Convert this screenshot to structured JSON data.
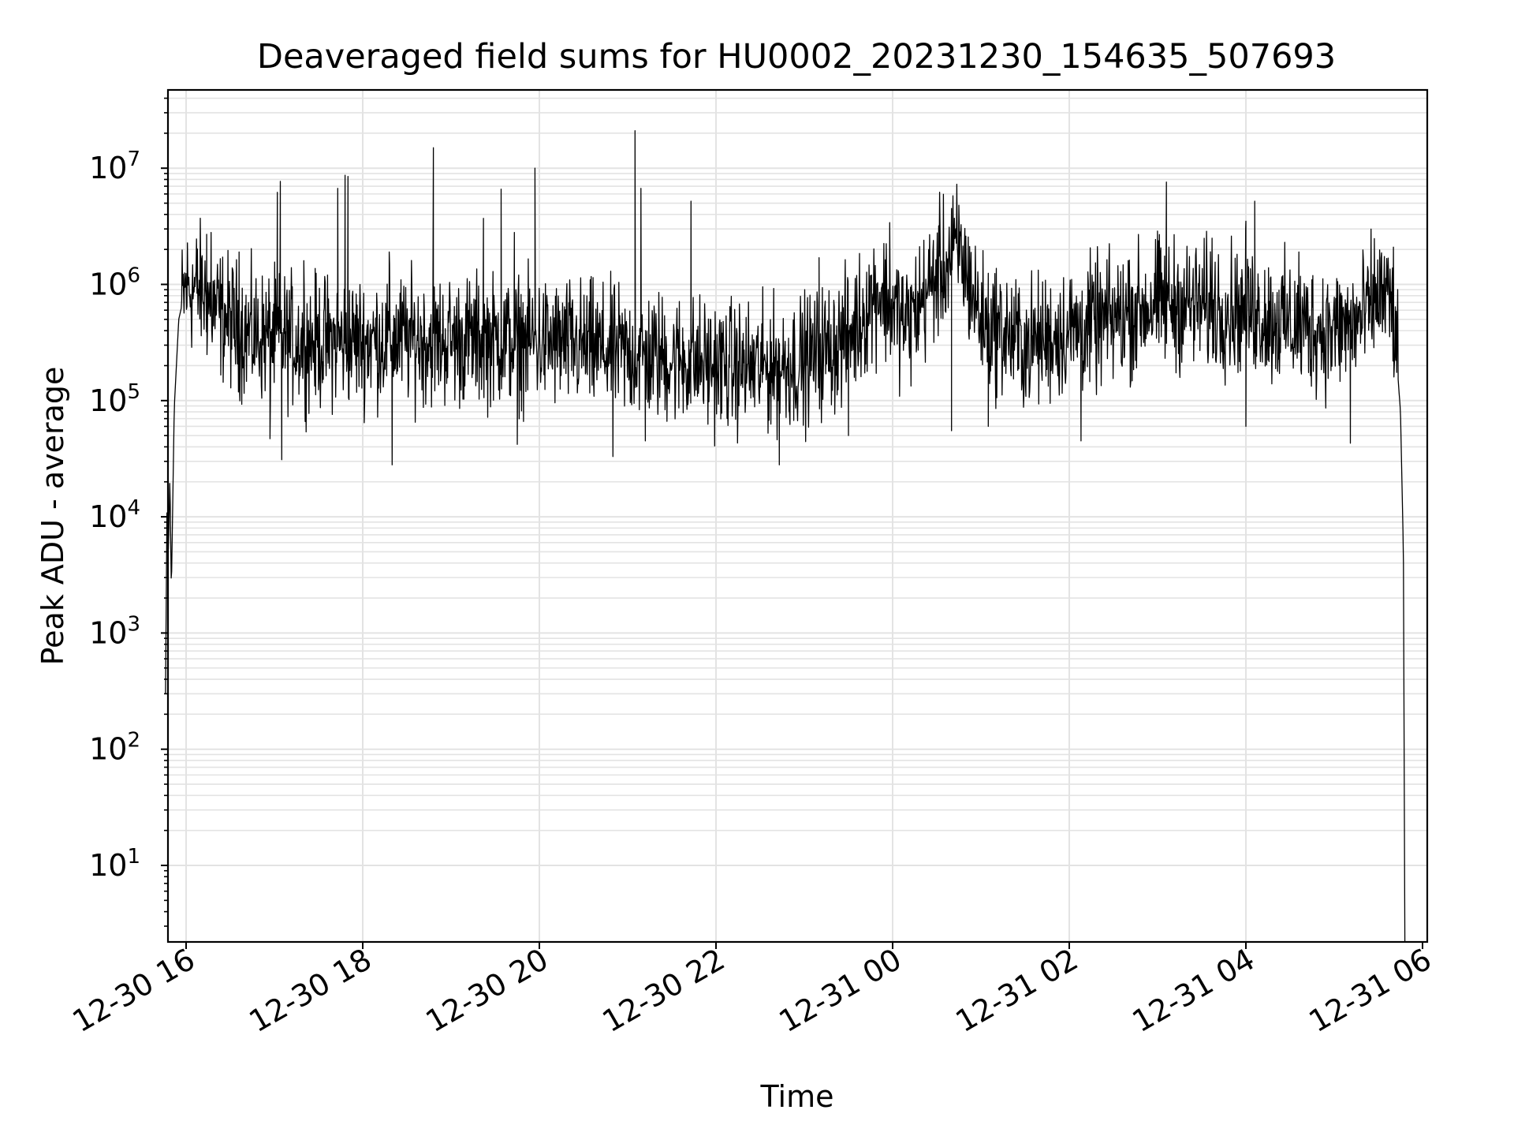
{
  "chart_data": {
    "type": "line",
    "title": "Deaveraged field sums for HU0002_20231230_154635_507693",
    "xlabel": "Time",
    "ylabel": "Peak ADU - average",
    "yscale": "log",
    "grid": true,
    "x_tick_labels": [
      "12-30 16",
      "12-30 18",
      "12-30 20",
      "12-30 22",
      "12-31 00",
      "12-31 02",
      "12-31 04",
      "12-31 06"
    ],
    "y_tick_labels": [
      {
        "base": "10",
        "exp": "1"
      },
      {
        "base": "10",
        "exp": "2"
      },
      {
        "base": "10",
        "exp": "3"
      },
      {
        "base": "10",
        "exp": "4"
      },
      {
        "base": "10",
        "exp": "5"
      },
      {
        "base": "10",
        "exp": "6"
      },
      {
        "base": "10",
        "exp": "7"
      }
    ],
    "x_range": [
      "2023-12-30 15:46",
      "2023-12-31 06:00"
    ],
    "y_range": [
      2,
      45000000
    ],
    "series": [
      {
        "color": "#000000",
        "points": [
          [
            "2023-12-30 15:46",
            300
          ],
          [
            "2023-12-30 15:47",
            12000
          ],
          [
            "2023-12-30 15:48",
            5000
          ],
          [
            "2023-12-30 15:49",
            22000
          ],
          [
            "2023-12-30 15:50",
            2300
          ],
          [
            "2023-12-30 15:52",
            90000
          ],
          [
            "2023-12-30 15:55",
            500000
          ],
          [
            "2023-12-30 16:00",
            950000
          ],
          [
            "2023-12-30 16:10",
            900000
          ],
          [
            "2023-12-30 16:20",
            600000
          ],
          [
            "2023-12-30 16:40",
            380000
          ],
          [
            "2023-12-30 17:00",
            340000
          ],
          [
            "2023-12-30 17:30",
            320000
          ],
          [
            "2023-12-30 18:00",
            330000
          ],
          [
            "2023-12-30 18:30",
            340000
          ],
          [
            "2023-12-30 19:00",
            330000
          ],
          [
            "2023-12-30 19:30",
            330000
          ],
          [
            "2023-12-30 20:00",
            320000
          ],
          [
            "2023-12-30 20:30",
            290000
          ],
          [
            "2023-12-30 21:00",
            250000
          ],
          [
            "2023-12-30 21:30",
            230000
          ],
          [
            "2023-12-30 22:00",
            200000
          ],
          [
            "2023-12-30 22:30",
            190000
          ],
          [
            "2023-12-30 23:00",
            220000
          ],
          [
            "2023-12-30 23:30",
            350000
          ],
          [
            "2023-12-30 23:50",
            900000
          ],
          [
            "2023-12-31 00:10",
            450000
          ],
          [
            "2023-12-31 00:30",
            1200000
          ],
          [
            "2023-12-31 00:45",
            2000000
          ],
          [
            "2023-12-31 01:00",
            500000
          ],
          [
            "2023-12-31 01:30",
            300000
          ],
          [
            "2023-12-31 02:00",
            400000
          ],
          [
            "2023-12-31 02:30",
            500000
          ],
          [
            "2023-12-31 03:00",
            700000
          ],
          [
            "2023-12-31 03:30",
            650000
          ],
          [
            "2023-12-31 04:00",
            600000
          ],
          [
            "2023-12-31 04:30",
            450000
          ],
          [
            "2023-12-31 05:00",
            400000
          ],
          [
            "2023-12-31 05:20",
            500000
          ],
          [
            "2023-12-31 05:30",
            850000
          ],
          [
            "2023-12-31 05:40",
            650000
          ],
          [
            "2023-12-31 05:45",
            80000
          ],
          [
            "2023-12-31 05:47",
            5000
          ],
          [
            "2023-12-31 05:48",
            2
          ]
        ],
        "peaks": [
          [
            "2023-12-30 16:14",
            2700000
          ],
          [
            "2023-12-30 16:17",
            2800000
          ],
          [
            "2023-12-30 16:36",
            1900000
          ],
          [
            "2023-12-30 17:02",
            6200000
          ],
          [
            "2023-12-30 17:04",
            7700000
          ],
          [
            "2023-12-30 17:20",
            1600000
          ],
          [
            "2023-12-30 17:43",
            6700000
          ],
          [
            "2023-12-30 17:48",
            8700000
          ],
          [
            "2023-12-30 17:50",
            8500000
          ],
          [
            "2023-12-30 18:18",
            1900000
          ],
          [
            "2023-12-30 18:48",
            15000000
          ],
          [
            "2023-12-30 19:22",
            3700000
          ],
          [
            "2023-12-30 19:34",
            6600000
          ],
          [
            "2023-12-30 19:43",
            2800000
          ],
          [
            "2023-12-30 19:57",
            10000000
          ],
          [
            "2023-12-30 21:05",
            21000000
          ],
          [
            "2023-12-30 21:09",
            6700000
          ],
          [
            "2023-12-30 21:43",
            5200000
          ],
          [
            "2023-12-30 23:10",
            1700000
          ],
          [
            "2023-12-30 23:58",
            3400000
          ],
          [
            "2023-12-31 00:40",
            4500000
          ],
          [
            "2023-12-31 00:45",
            4800000
          ],
          [
            "2023-12-31 02:40",
            1600000
          ],
          [
            "2023-12-31 03:06",
            7600000
          ],
          [
            "2023-12-31 03:37",
            2500000
          ],
          [
            "2023-12-31 04:00",
            3500000
          ],
          [
            "2023-12-31 04:06",
            5200000
          ],
          [
            "2023-12-31 04:36",
            1900000
          ]
        ],
        "dips": [
          [
            "2023-12-30 16:57",
            47000
          ],
          [
            "2023-12-30 17:05",
            31000
          ],
          [
            "2023-12-30 18:20",
            28000
          ],
          [
            "2023-12-30 19:45",
            42000
          ],
          [
            "2023-12-30 20:50",
            33000
          ],
          [
            "2023-12-30 21:12",
            45000
          ],
          [
            "2023-12-30 22:43",
            28000
          ],
          [
            "2023-12-30 23:30",
            50000
          ],
          [
            "2023-12-31 00:40",
            55000
          ],
          [
            "2023-12-31 01:05",
            60000
          ],
          [
            "2023-12-31 02:08",
            45000
          ],
          [
            "2023-12-31 04:00",
            60000
          ],
          [
            "2023-12-31 05:11",
            43000
          ]
        ]
      }
    ]
  }
}
